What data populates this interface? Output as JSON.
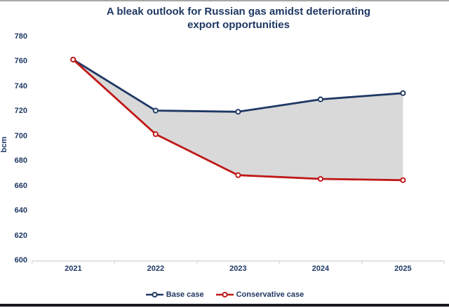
{
  "page": {
    "background": "#ffffff",
    "top_border_color": "#a8a8a8",
    "bottom_border_color": "#191923"
  },
  "header": {
    "title_lines": [
      "A bleak outlook for Russian gas amidst deteriorating",
      "export opportunities"
    ]
  },
  "chart_data": {
    "type": "line",
    "title": "A bleak outlook for Russian gas amidst deteriorating export opportunities",
    "categories": [
      "2021",
      "2022",
      "2023",
      "2024",
      "2025"
    ],
    "series": [
      {
        "name": "Base case",
        "color": "#1f3864",
        "values": [
          762,
          721,
          720,
          730,
          735
        ]
      },
      {
        "name": "Conservative case",
        "color": "#c01818",
        "values": [
          762,
          702,
          669,
          666,
          665
        ]
      }
    ],
    "xlabel": "",
    "ylabel": "bcm",
    "ylim": [
      600,
      780
    ],
    "yticks": [
      600,
      620,
      640,
      660,
      680,
      700,
      720,
      740,
      760,
      780
    ],
    "grid": false,
    "legend_position": "bottom",
    "marker": "open-circle",
    "fill_between_series": true,
    "fill_color": "#d9d9d9",
    "axis_line_color": "#d9d9d9",
    "text_color": "#1f3864"
  }
}
